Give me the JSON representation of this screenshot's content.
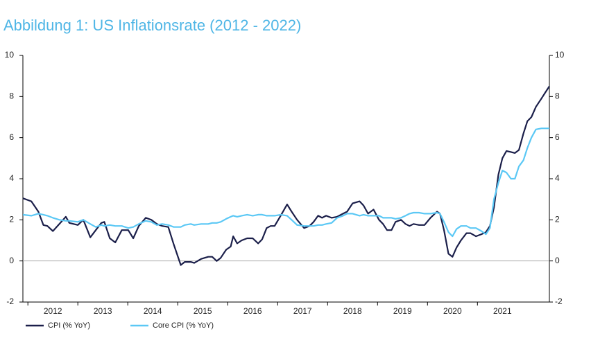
{
  "chart_data": {
    "type": "line",
    "title": "Abbildung 1: US Inflationsrate (2012 - 2022)",
    "x": [
      2011.9,
      2012.07,
      2012.21,
      2012.31,
      2012.39,
      2012.5,
      2012.63,
      2012.76,
      2012.83,
      2013.0,
      2013.11,
      2013.25,
      2013.36,
      2013.47,
      2013.53,
      2013.64,
      2013.75,
      2013.88,
      2014.01,
      2014.11,
      2014.22,
      2014.36,
      2014.47,
      2014.58,
      2014.69,
      2014.81,
      2014.92,
      2015.06,
      2015.14,
      2015.26,
      2015.33,
      2015.47,
      2015.61,
      2015.69,
      2015.78,
      2015.86,
      2015.97,
      2016.06,
      2016.11,
      2016.19,
      2016.28,
      2016.39,
      2016.5,
      2016.61,
      2016.69,
      2016.78,
      2016.86,
      2016.94,
      2017.06,
      2017.19,
      2017.28,
      2017.39,
      2017.53,
      2017.64,
      2017.72,
      2017.81,
      2017.89,
      2017.97,
      2018.08,
      2018.19,
      2018.31,
      2018.39,
      2018.5,
      2018.64,
      2018.72,
      2018.81,
      2018.92,
      2019.03,
      2019.11,
      2019.19,
      2019.28,
      2019.36,
      2019.47,
      2019.56,
      2019.64,
      2019.72,
      2019.83,
      2019.94,
      2020.06,
      2020.19,
      2020.25,
      2020.33,
      2020.42,
      2020.5,
      2020.58,
      2020.67,
      2020.78,
      2020.86,
      2020.97,
      2021.08,
      2021.17,
      2021.25,
      2021.33,
      2021.42,
      2021.5,
      2021.58,
      2021.67,
      2021.75,
      2021.83,
      2021.92,
      2022.0,
      2022.08,
      2022.17,
      2022.28,
      2022.36,
      2022.44
    ],
    "series": [
      {
        "name": "CPI (% YoY)",
        "color": "#1b1f4a",
        "values": [
          3.05,
          2.9,
          2.4,
          1.75,
          1.7,
          1.45,
          1.8,
          2.15,
          1.85,
          1.75,
          2.0,
          1.15,
          1.5,
          1.85,
          1.9,
          1.1,
          0.9,
          1.5,
          1.5,
          1.1,
          1.7,
          2.1,
          2.0,
          1.8,
          1.7,
          1.65,
          0.8,
          -0.2,
          -0.05,
          -0.05,
          -0.1,
          0.1,
          0.2,
          0.2,
          0.0,
          0.15,
          0.55,
          0.7,
          1.2,
          0.85,
          1.0,
          1.1,
          1.1,
          0.85,
          1.05,
          1.6,
          1.7,
          1.7,
          2.2,
          2.75,
          2.4,
          2.0,
          1.6,
          1.7,
          1.9,
          2.2,
          2.1,
          2.2,
          2.1,
          2.15,
          2.3,
          2.4,
          2.8,
          2.9,
          2.7,
          2.3,
          2.5,
          2.0,
          1.8,
          1.5,
          1.5,
          1.9,
          2.0,
          1.8,
          1.7,
          1.8,
          1.75,
          1.75,
          2.1,
          2.4,
          2.3,
          1.5,
          0.35,
          0.2,
          0.65,
          1.0,
          1.35,
          1.35,
          1.2,
          1.3,
          1.4,
          1.7,
          2.6,
          4.2,
          5.0,
          5.35,
          5.3,
          5.25,
          5.4,
          6.2,
          6.8,
          7.0,
          7.5,
          7.9,
          8.2,
          8.5
        ]
      },
      {
        "name": "Core CPI (% YoY)",
        "color": "#5bc8f5",
        "values": [
          2.25,
          2.2,
          2.3,
          2.25,
          2.2,
          2.1,
          2.0,
          1.95,
          1.95,
          1.9,
          2.0,
          1.8,
          1.65,
          1.75,
          1.7,
          1.75,
          1.7,
          1.7,
          1.6,
          1.65,
          1.8,
          1.95,
          1.9,
          1.75,
          1.8,
          1.75,
          1.65,
          1.65,
          1.75,
          1.8,
          1.75,
          1.8,
          1.8,
          1.85,
          1.85,
          1.9,
          2.05,
          2.15,
          2.2,
          2.15,
          2.2,
          2.25,
          2.2,
          2.25,
          2.25,
          2.2,
          2.2,
          2.2,
          2.25,
          2.2,
          2.0,
          1.75,
          1.7,
          1.7,
          1.7,
          1.75,
          1.75,
          1.8,
          1.85,
          2.1,
          2.2,
          2.3,
          2.3,
          2.2,
          2.25,
          2.2,
          2.2,
          2.2,
          2.1,
          2.1,
          2.1,
          2.05,
          2.1,
          2.2,
          2.3,
          2.35,
          2.35,
          2.3,
          2.3,
          2.35,
          2.3,
          1.9,
          1.4,
          1.2,
          1.55,
          1.7,
          1.7,
          1.6,
          1.6,
          1.45,
          1.3,
          1.6,
          3.0,
          3.8,
          4.4,
          4.3,
          4.0,
          4.0,
          4.6,
          4.9,
          5.5,
          6.0,
          6.4,
          6.45,
          6.45,
          6.45
        ]
      }
    ],
    "xlim": [
      2011.9,
      2022.44
    ],
    "xticks": [
      {
        "value": 2012.5,
        "label": "2012"
      },
      {
        "value": 2013.5,
        "label": "2013"
      },
      {
        "value": 2014.5,
        "label": "2014"
      },
      {
        "value": 2015.5,
        "label": "2015"
      },
      {
        "value": 2016.5,
        "label": "2016"
      },
      {
        "value": 2017.5,
        "label": "2017"
      },
      {
        "value": 2018.5,
        "label": "2018"
      },
      {
        "value": 2019.5,
        "label": "2019"
      },
      {
        "value": 2020.5,
        "label": "2020"
      },
      {
        "value": 2021.5,
        "label": "2021"
      }
    ],
    "ylim": [
      -2,
      10
    ],
    "yticks": [
      -2,
      0,
      2,
      4,
      6,
      8,
      10
    ],
    "y2lim": [
      -2,
      10
    ],
    "y2ticks": [
      -2,
      0,
      2,
      4,
      6,
      8,
      10
    ],
    "zero_line": true,
    "legend": "bottom-left"
  }
}
